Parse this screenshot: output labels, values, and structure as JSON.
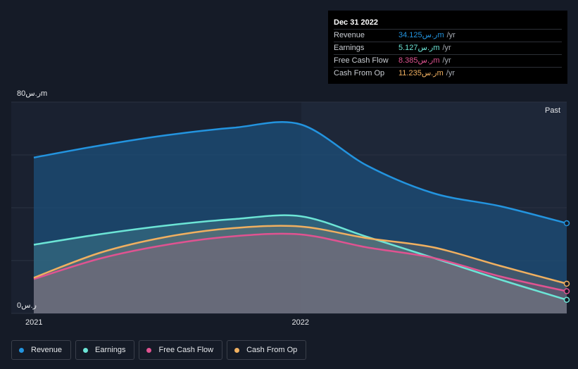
{
  "chart_data": {
    "type": "area",
    "x": [
      2021.0,
      2021.25,
      2021.5,
      2021.75,
      2022.0,
      2022.25,
      2022.5,
      2022.75,
      2023.0
    ],
    "series": [
      {
        "name": "Revenue",
        "color": "#2394df",
        "values": [
          59.0,
          63.6,
          67.5,
          70.3,
          71.6,
          56.0,
          45.5,
          40.6,
          34.125
        ]
      },
      {
        "name": "Earnings",
        "color": "#6ce5d6",
        "values": [
          26.0,
          30.0,
          33.3,
          35.7,
          36.8,
          29.0,
          21.0,
          12.8,
          5.127
        ]
      },
      {
        "name": "Free Cash Flow",
        "color": "#e05391",
        "values": [
          13.0,
          20.8,
          26.0,
          29.2,
          29.9,
          25.0,
          21.0,
          14.0,
          8.385
        ]
      },
      {
        "name": "Cash From Op",
        "color": "#f0b060",
        "values": [
          13.5,
          23.0,
          29.0,
          32.3,
          32.9,
          28.5,
          25.0,
          18.0,
          11.235
        ]
      }
    ],
    "xlabel": "",
    "ylabel": "",
    "ylim": [
      0,
      80
    ],
    "x_ticks": [
      "2021",
      "2022"
    ],
    "y_top_label": "80ر.سm",
    "y_bottom_label": "0ر.س",
    "past_label": "Past",
    "grid": true,
    "legend_position": "bottom-left"
  },
  "tooltip": {
    "date": "Dec 31 2022",
    "rows": [
      {
        "name": "Revenue",
        "value": "34.125ر.سm",
        "unit": "/yr",
        "color": "#2394df"
      },
      {
        "name": "Earnings",
        "value": "5.127ر.سm",
        "unit": "/yr",
        "color": "#6ce5d6"
      },
      {
        "name": "Free Cash Flow",
        "value": "8.385ر.سm",
        "unit": "/yr",
        "color": "#e05391"
      },
      {
        "name": "Cash From Op",
        "value": "11.235ر.سm",
        "unit": "/yr",
        "color": "#f0b060"
      }
    ]
  },
  "legend": [
    {
      "label": "Revenue",
      "color": "#2394df"
    },
    {
      "label": "Earnings",
      "color": "#6ce5d6"
    },
    {
      "label": "Free Cash Flow",
      "color": "#e05391"
    },
    {
      "label": "Cash From Op",
      "color": "#f0b060"
    }
  ]
}
